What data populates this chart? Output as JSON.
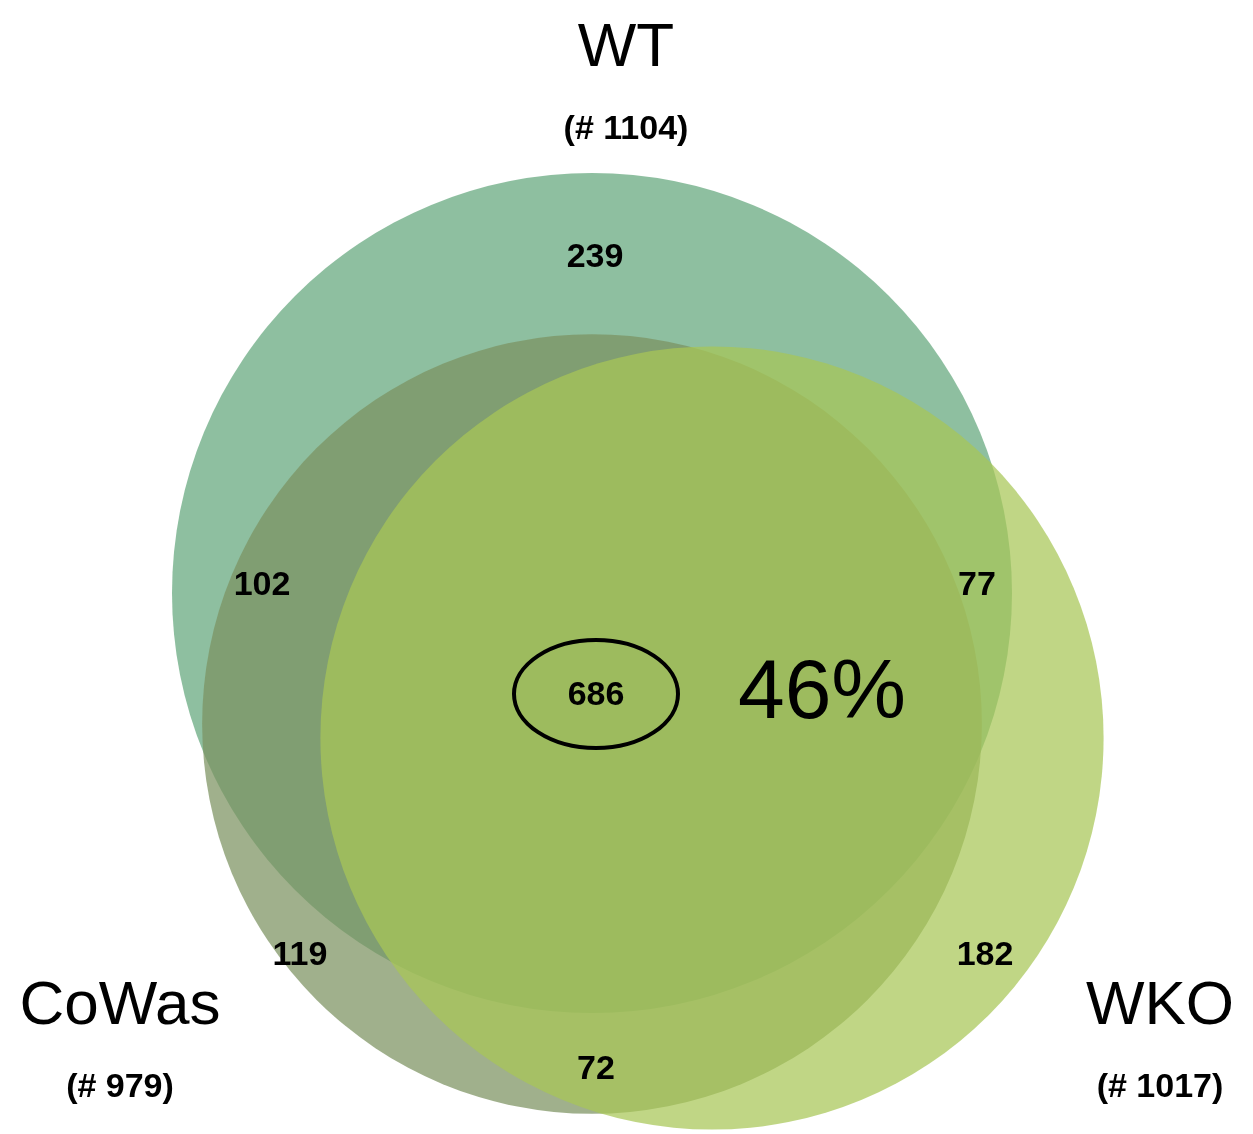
{
  "chart_data": {
    "type": "other",
    "categories": [
      "WT",
      "CoWas",
      "WKO"
    ],
    "values": [
      1104,
      979,
      1017
    ],
    "value_labels": [
      "(# 1104)",
      "(# 979)",
      "(# 1017)"
    ],
    "colors": [
      "#62a67b",
      "#7b925f",
      "#a8c656"
    ],
    "annotations": [
      "239",
      "102",
      "77",
      "686",
      "119",
      "72",
      "182",
      "46%"
    ]
  }
}
